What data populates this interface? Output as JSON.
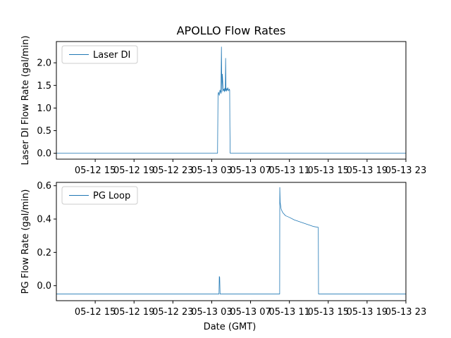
{
  "chart_data": [
    {
      "type": "line",
      "title": "APOLLO Flow Rates",
      "ylabel": "Laser DI Flow Rate (gal/min)",
      "xlabel": "",
      "xlim": [
        0,
        36
      ],
      "ylim": [
        -0.13,
        2.47
      ],
      "yticks": [
        0.0,
        0.5,
        1.0,
        1.5,
        2.0
      ],
      "ytick_labels": [
        "0.0",
        "0.5",
        "1.0",
        "1.5",
        "2.0"
      ],
      "xticks": [
        4,
        8,
        12,
        16,
        20,
        24,
        28,
        32,
        36
      ],
      "xtick_labels": [
        "05-12 15",
        "05-12 19",
        "05-12 23",
        "05-13 03",
        "05-13 07",
        "05-13 11",
        "05-13 15",
        "05-13 19",
        "05-13 23"
      ],
      "grid": false,
      "legend": "top-left",
      "color": "#1f77b4",
      "series": [
        {
          "name": "Laser DI",
          "x": [
            0,
            16.6,
            16.65,
            16.7,
            16.78,
            16.85,
            16.95,
            17.0,
            17.05,
            17.1,
            17.18,
            17.25,
            17.3,
            17.35,
            17.4,
            17.43,
            17.47,
            17.5,
            17.55,
            17.6,
            17.65,
            17.7,
            17.75,
            17.8,
            17.85,
            17.87,
            17.9,
            36
          ],
          "y": [
            0,
            0,
            1.3,
            1.35,
            1.28,
            1.4,
            1.32,
            2.35,
            1.35,
            1.75,
            1.38,
            1.42,
            1.36,
            1.44,
            1.38,
            2.1,
            1.4,
            1.37,
            1.43,
            1.39,
            1.45,
            1.41,
            1.38,
            1.42,
            1.4,
            0.6,
            0,
            0
          ]
        }
      ]
    },
    {
      "type": "line",
      "title": "",
      "ylabel": "PG Flow Rate (gal/min)",
      "xlabel": "Date (GMT)",
      "xlim": [
        0,
        36
      ],
      "ylim": [
        -0.09,
        0.62
      ],
      "yticks": [
        0.0,
        0.2,
        0.4,
        0.6
      ],
      "ytick_labels": [
        "0.0",
        "0.2",
        "0.4",
        "0.6"
      ],
      "xticks": [
        4,
        8,
        12,
        16,
        20,
        24,
        28,
        32,
        36
      ],
      "xtick_labels": [
        "05-12 15",
        "05-12 19",
        "05-12 23",
        "05-13 03",
        "05-13 07",
        "05-13 11",
        "05-13 15",
        "05-13 19",
        "05-13 23"
      ],
      "grid": false,
      "legend": "top-left",
      "color": "#1f77b4",
      "series": [
        {
          "name": "PG Loop",
          "x": [
            0,
            16.75,
            16.78,
            16.82,
            16.86,
            23.0,
            23.01,
            23.05,
            23.15,
            23.3,
            23.6,
            24.0,
            24.5,
            25.0,
            25.5,
            26.0,
            26.5,
            26.98,
            27.0,
            36
          ],
          "y": [
            -0.05,
            -0.05,
            0.055,
            0.05,
            -0.05,
            -0.05,
            0.59,
            0.5,
            0.46,
            0.44,
            0.42,
            0.41,
            0.395,
            0.385,
            0.375,
            0.365,
            0.355,
            0.35,
            -0.05,
            -0.05
          ]
        }
      ]
    }
  ]
}
